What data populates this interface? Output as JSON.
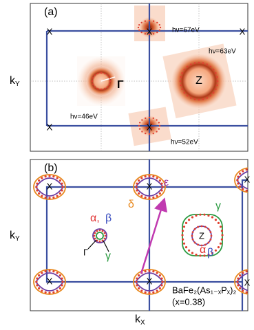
{
  "panel_a": {
    "label": "(a)",
    "x_points": [
      "X",
      "X",
      "X",
      "X",
      "X"
    ],
    "photon_energies": [
      "hν=67eV",
      "hν=63eV",
      "hν=46eV",
      "hν=52eV"
    ],
    "gamma": "Γ",
    "z": "Z",
    "y_axis": {
      "k": "k",
      "sub": "Y"
    }
  },
  "panel_b": {
    "label": "(b)",
    "x_points": [
      "X",
      "X",
      "X",
      "X",
      "X",
      "X"
    ],
    "gamma": "Γ",
    "z": "Z",
    "gamma_alpha": "α,",
    "gamma_beta": "β",
    "gamma_gamma": "γ",
    "delta": "δ",
    "epsilon": "ε",
    "z_gamma": "γ",
    "z_alpha": "α",
    "z_beta": "β",
    "compound": "BaFe₂(As₁₋ₓPₓ)₂",
    "composition": "(x=0.38)",
    "y_axis": {
      "k": "k",
      "sub": "Y"
    },
    "x_axis": {
      "k": "k",
      "sub": "X"
    }
  }
}
